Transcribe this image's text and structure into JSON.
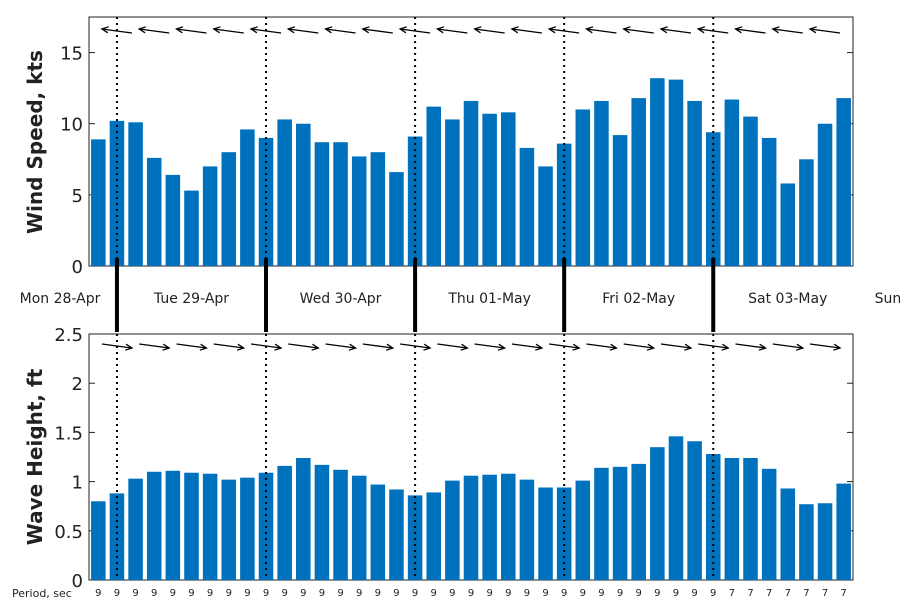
{
  "colors": {
    "bar": "#0072BD",
    "axis": "#222222",
    "arrow": "#000000"
  },
  "chart_data": [
    {
      "type": "bar",
      "ylabel": "Wind Speed, kts",
      "ylim": [
        0,
        17.5
      ],
      "yticks": [
        "0",
        "5",
        "10",
        "15"
      ],
      "ytick_values": [
        0,
        5,
        10,
        15
      ],
      "values": [
        8.9,
        10.2,
        10.1,
        7.6,
        6.4,
        5.3,
        7.0,
        8.0,
        9.6,
        9.0,
        10.3,
        10.0,
        8.7,
        8.7,
        7.7,
        8.0,
        6.6,
        9.1,
        11.2,
        10.3,
        11.6,
        10.7,
        10.8,
        8.3,
        7.0,
        8.6,
        11.0,
        11.6,
        9.2,
        11.8,
        13.2,
        13.1,
        11.6,
        9.4,
        11.7,
        10.5,
        9.0,
        5.8,
        7.5,
        10.0,
        11.8
      ],
      "direction_arrows": "toward-left",
      "grid": true
    },
    {
      "type": "bar",
      "ylabel": "Wave Height, ft",
      "ylim": [
        0,
        2.5
      ],
      "yticks": [
        "0",
        "0.5",
        "1",
        "1.5",
        "2",
        "2.5"
      ],
      "ytick_values": [
        0,
        0.5,
        1,
        1.5,
        2,
        2.5
      ],
      "values": [
        0.8,
        0.88,
        1.03,
        1.1,
        1.11,
        1.09,
        1.08,
        1.02,
        1.04,
        1.09,
        1.16,
        1.24,
        1.17,
        1.12,
        1.06,
        0.97,
        0.92,
        0.86,
        0.89,
        1.01,
        1.06,
        1.07,
        1.08,
        1.02,
        0.94,
        0.94,
        1.01,
        1.14,
        1.15,
        1.18,
        1.35,
        1.46,
        1.41,
        1.28,
        1.24,
        1.24,
        1.13,
        0.93,
        0.77,
        0.78,
        0.98
      ],
      "direction_arrows": "toward-right",
      "grid": true
    }
  ],
  "days": [
    "Mon 28-Apr",
    "Tue 29-Apr",
    "Wed 30-Apr",
    "Thu 01-May",
    "Fri 02-May",
    "Sat 03-May",
    "Sun"
  ],
  "period": {
    "label": "Period, sec",
    "values": [
      "9",
      "9",
      "9",
      "9",
      "9",
      "9",
      "9",
      "9",
      "9",
      "9",
      "9",
      "9",
      "9",
      "9",
      "9",
      "9",
      "9",
      "9",
      "9",
      "9",
      "9",
      "9",
      "9",
      "9",
      "9",
      "9",
      "9",
      "9",
      "9",
      "9",
      "9",
      "9",
      "9",
      "9",
      "7",
      "7",
      "7",
      "7",
      "7",
      "7",
      "7"
    ]
  }
}
